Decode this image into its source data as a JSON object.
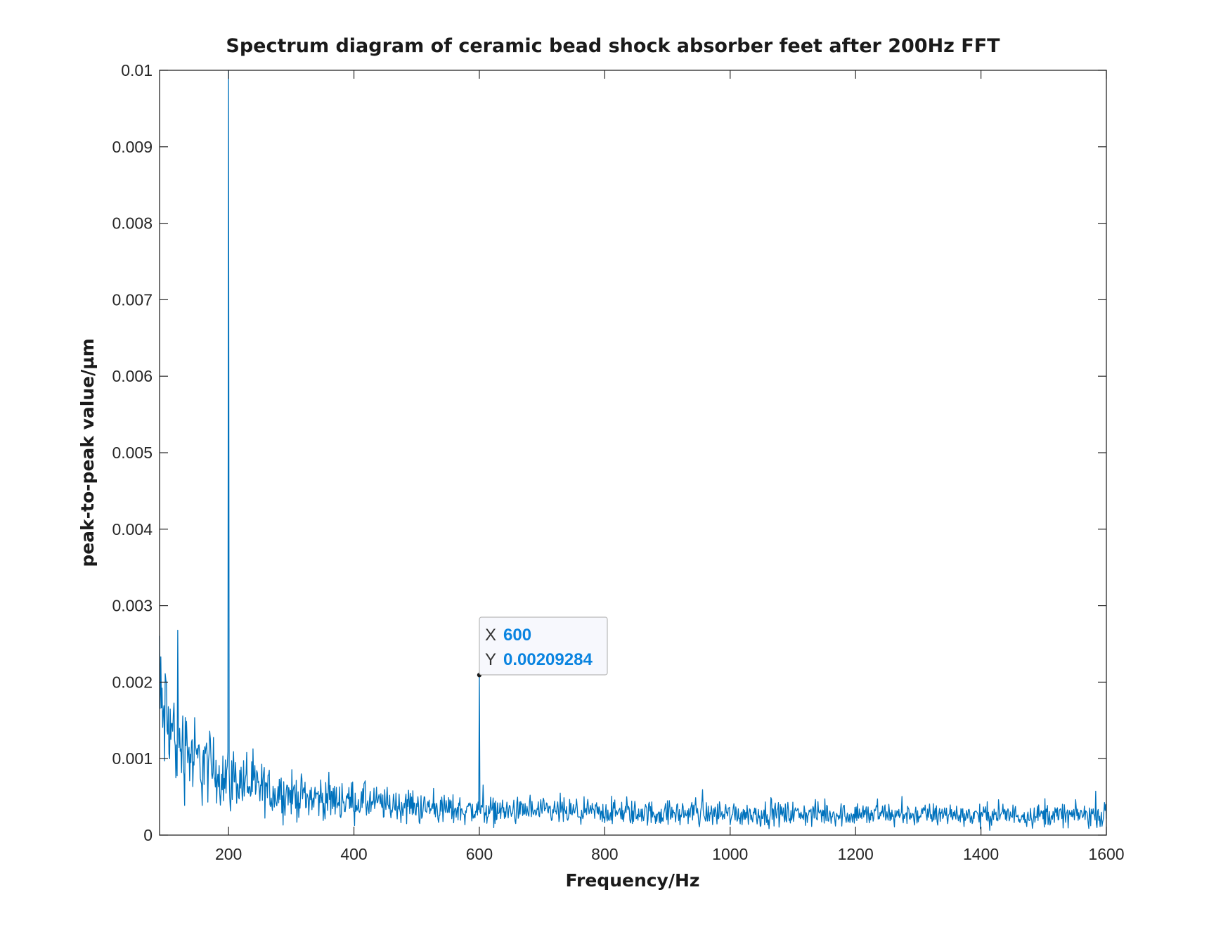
{
  "chart_data": {
    "type": "line",
    "title": "Spectrum diagram of ceramic bead shock absorber feet after 200Hz FFT",
    "xlabel": "Frequency/Hz",
    "ylabel": "peak-to-peak value/µm",
    "xlim": [
      90,
      1600
    ],
    "ylim": [
      0,
      0.01
    ],
    "xticks": [
      200,
      400,
      600,
      800,
      1000,
      1200,
      1400,
      1600
    ],
    "xtick_labels": [
      "200",
      "400",
      "600",
      "800",
      "1000",
      "1200",
      "1400",
      "1600"
    ],
    "yticks": [
      0,
      0.001,
      0.002,
      0.003,
      0.004,
      0.005,
      0.006,
      0.007,
      0.008,
      0.009,
      0.01
    ],
    "ytick_labels": [
      "0",
      "0.001",
      "0.002",
      "0.003",
      "0.004",
      "0.005",
      "0.006",
      "0.007",
      "0.008",
      "0.009",
      "0.01"
    ],
    "grid": false,
    "line_color": "#0072BD",
    "noise_floor": {
      "x": [
        90,
        100,
        120,
        150,
        200,
        250,
        300,
        400,
        500,
        600,
        700,
        800,
        1000,
        1200,
        1400,
        1600
      ],
      "y": [
        0.00165,
        0.0015,
        0.0012,
        0.00095,
        0.00075,
        0.0006,
        0.00052,
        0.00044,
        0.00036,
        0.00032,
        0.0003,
        0.00029,
        0.00028,
        0.00027,
        0.00026,
        0.00026
      ]
    },
    "peaks": [
      {
        "x": 200,
        "y": 0.01
      },
      {
        "x": 600,
        "y": 0.00209284
      }
    ],
    "datatip": {
      "x_key": "X",
      "x_value": "600",
      "y_key": "Y",
      "y_value": "0.00209284",
      "value_color": "#0A84E0"
    }
  }
}
